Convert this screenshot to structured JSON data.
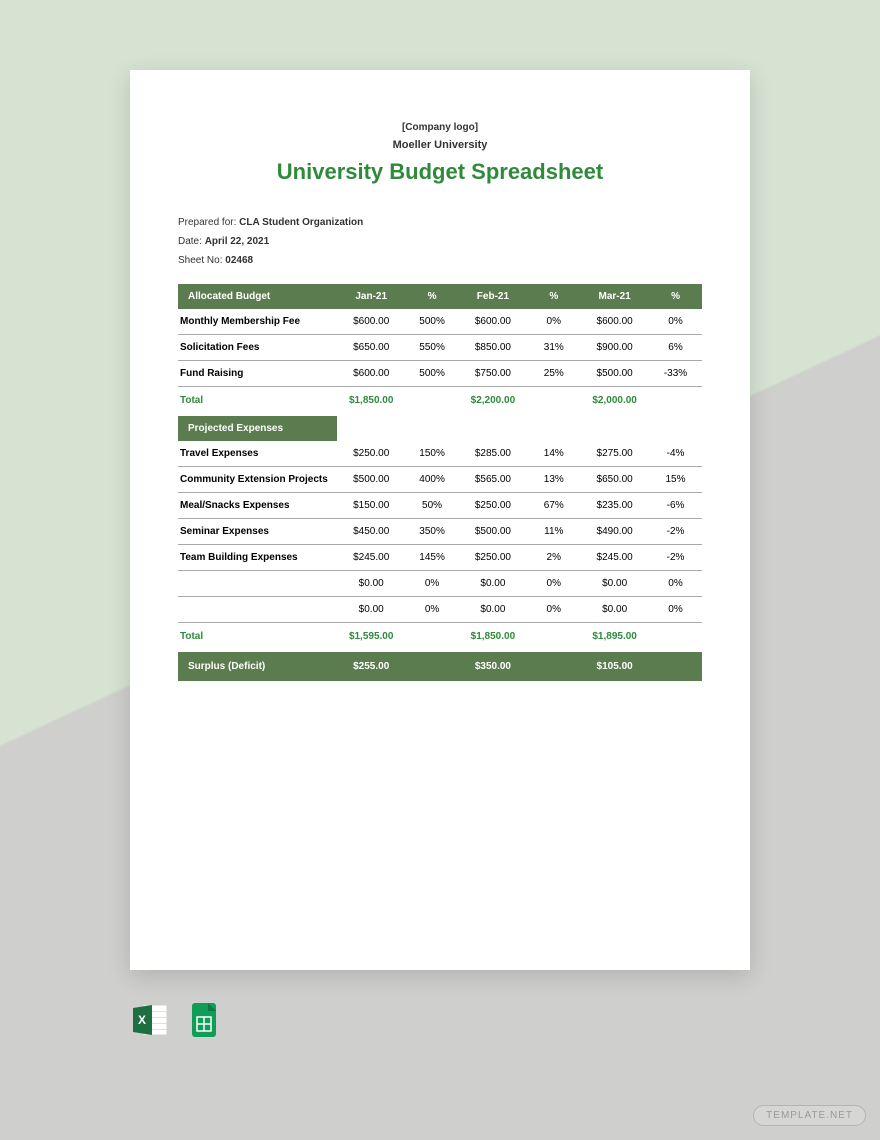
{
  "colors": {
    "accent": "#2f8a3b",
    "header_bg": "#5b7c4e",
    "bg_light": "#d6e3d3",
    "bg_grey": "#cfd0cd",
    "text": "#333333"
  },
  "header": {
    "logo_placeholder": "[Company logo]",
    "company": "Moeller University",
    "title": "University Budget Spreadsheet"
  },
  "meta": {
    "prepared_label": "Prepared for: ",
    "prepared_value": "CLA Student Organization",
    "date_label": "Date: ",
    "date_value": "April 22, 2021",
    "sheet_label": "Sheet No: ",
    "sheet_value": "02468"
  },
  "columns": {
    "c1": "Allocated Budget",
    "c2": "Jan-21",
    "c3": "%",
    "c4": "Feb-21",
    "c5": "%",
    "c6": "Mar-21",
    "c7": "%"
  },
  "allocated": {
    "rows": [
      {
        "label": "Monthly Membership Fee",
        "jan": "$600.00",
        "jpct": "500%",
        "feb": "$600.00",
        "fpct": "0%",
        "mar": "$600.00",
        "mpct": "0%"
      },
      {
        "label": "Solicitation Fees",
        "jan": "$650.00",
        "jpct": "550%",
        "feb": "$850.00",
        "fpct": "31%",
        "mar": "$900.00",
        "mpct": "6%"
      },
      {
        "label": "Fund Raising",
        "jan": "$600.00",
        "jpct": "500%",
        "feb": "$750.00",
        "fpct": "25%",
        "mar": "$500.00",
        "mpct": "-33%"
      }
    ],
    "total_label": "Total",
    "total_jan": "$1,850.00",
    "total_feb": "$2,200.00",
    "total_mar": "$2,000.00"
  },
  "expenses_header": "Projected Expenses",
  "expenses": {
    "rows": [
      {
        "label": "Travel Expenses",
        "jan": "$250.00",
        "jpct": "150%",
        "feb": "$285.00",
        "fpct": "14%",
        "mar": "$275.00",
        "mpct": "-4%"
      },
      {
        "label": "Community Extension Projects",
        "jan": "$500.00",
        "jpct": "400%",
        "feb": "$565.00",
        "fpct": "13%",
        "mar": "$650.00",
        "mpct": "15%"
      },
      {
        "label": "Meal/Snacks Expenses",
        "jan": "$150.00",
        "jpct": "50%",
        "feb": "$250.00",
        "fpct": "67%",
        "mar": "$235.00",
        "mpct": "-6%"
      },
      {
        "label": "Seminar Expenses",
        "jan": "$450.00",
        "jpct": "350%",
        "feb": "$500.00",
        "fpct": "11%",
        "mar": "$490.00",
        "mpct": "-2%"
      },
      {
        "label": "Team Building Expenses",
        "jan": "$245.00",
        "jpct": "145%",
        "feb": "$250.00",
        "fpct": "2%",
        "mar": "$245.00",
        "mpct": "-2%"
      },
      {
        "label": "",
        "jan": "$0.00",
        "jpct": "0%",
        "feb": "$0.00",
        "fpct": "0%",
        "mar": "$0.00",
        "mpct": "0%"
      },
      {
        "label": "",
        "jan": "$0.00",
        "jpct": "0%",
        "feb": "$0.00",
        "fpct": "0%",
        "mar": "$0.00",
        "mpct": "0%"
      }
    ],
    "total_label": "Total",
    "total_jan": "$1,595.00",
    "total_feb": "$1,850.00",
    "total_mar": "$1,895.00"
  },
  "surplus": {
    "label": "Surplus (Deficit)",
    "jan": "$255.00",
    "feb": "$350.00",
    "mar": "$105.00"
  },
  "watermark": "TEMPLATE.NET"
}
